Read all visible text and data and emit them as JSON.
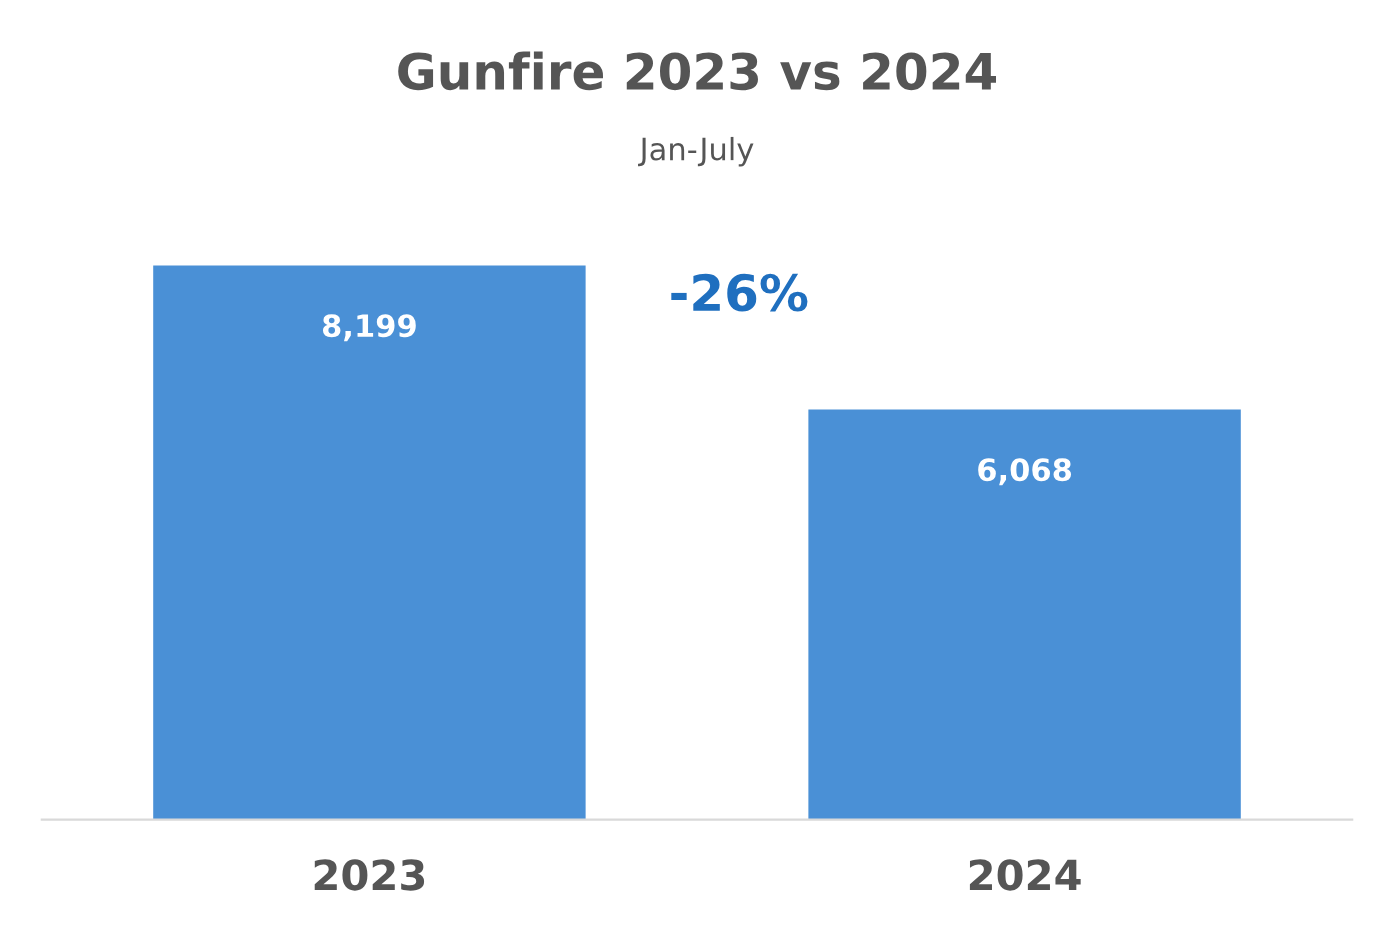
{
  "chart_data": {
    "type": "bar",
    "title": "Gunfire 2023 vs 2024",
    "subtitle": "Jan-July",
    "categories": [
      "2023",
      "2024"
    ],
    "values": [
      8199,
      6068
    ],
    "value_labels": [
      "8,199",
      "6,068"
    ],
    "color": "#4a90d6",
    "annotations": [
      "-26%"
    ],
    "grid": false,
    "legend": false
  }
}
